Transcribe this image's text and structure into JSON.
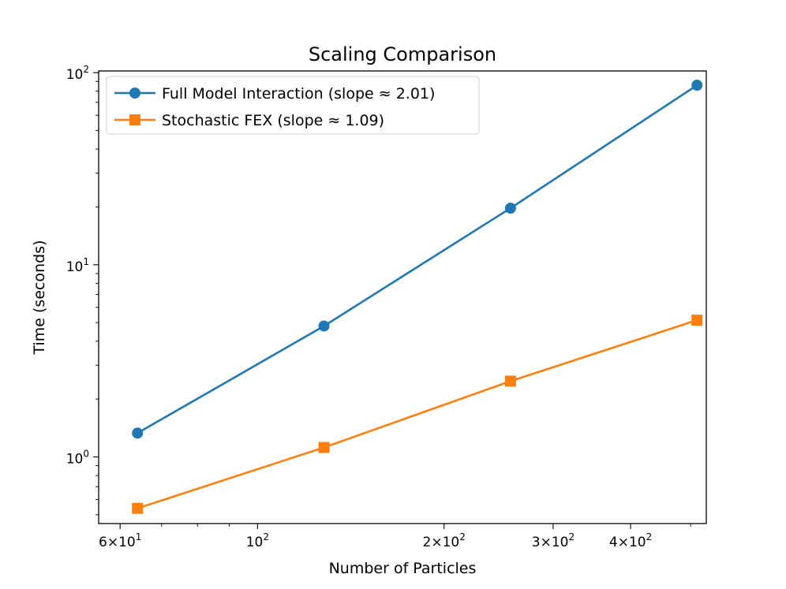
{
  "chart_data": {
    "type": "line",
    "title": "Scaling Comparison",
    "xlabel": "Number of Particles",
    "ylabel": "Time (seconds)",
    "xscale": "log",
    "yscale": "log",
    "xlim": [
      55.4,
      530
    ],
    "ylim": [
      0.45,
      102
    ],
    "x": [
      64,
      128,
      256,
      512
    ],
    "x_ticks": [
      {
        "value": 60,
        "mant": "6",
        "exp": "1"
      },
      {
        "value": 100,
        "mant": "",
        "exp": "2"
      },
      {
        "value": 200,
        "mant": "2",
        "exp": "2"
      },
      {
        "value": 300,
        "mant": "3",
        "exp": "2"
      },
      {
        "value": 400,
        "mant": "4",
        "exp": "2"
      }
    ],
    "y_ticks": [
      {
        "value": 1,
        "mant": "",
        "exp": "0"
      },
      {
        "value": 10,
        "mant": "",
        "exp": "1"
      },
      {
        "value": 100,
        "mant": "",
        "exp": "2"
      }
    ],
    "grid": false,
    "legend_position": "top-left",
    "series": [
      {
        "name": "Full Model Interaction (slope ≈ 2.01)",
        "values": [
          1.33,
          4.8,
          19.7,
          86
        ],
        "color": "#1f77b4",
        "marker": "circle"
      },
      {
        "name": "Stochastic FEX (slope ≈ 1.09)",
        "values": [
          0.54,
          1.12,
          2.48,
          5.15
        ],
        "color": "#ff7f0e",
        "marker": "square"
      }
    ]
  }
}
